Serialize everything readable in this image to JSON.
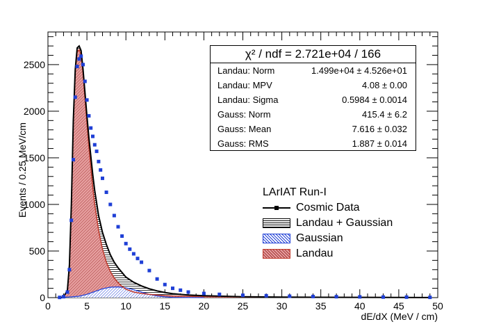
{
  "chart_data": {
    "type": "line",
    "xlabel": "dE/dX (MeV / cm)",
    "ylabel": "Events / 0.25 MeV/cm",
    "xlim": [
      0,
      50
    ],
    "ylim": [
      0,
      2850
    ],
    "x_ticks": [
      "0",
      "5",
      "10",
      "15",
      "20",
      "25",
      "30",
      "35",
      "40",
      "45",
      "50"
    ],
    "y_ticks": [
      "0",
      "500",
      "1000",
      "1500",
      "2000",
      "2500"
    ],
    "legend": {
      "header": "LArIAT Run-I",
      "entries": [
        "Cosmic Data",
        "Landau + Gaussian",
        "Gaussian",
        "Landau"
      ],
      "position": "right"
    },
    "stats": {
      "title": "χ² / ndf = 2.721e+04 / 166",
      "rows": [
        {
          "label": "Landau: Norm",
          "value": "1.499e+04 ± 4.526e+01"
        },
        {
          "label": "Landau: MPV",
          "value": "4.08 ± 0.00"
        },
        {
          "label": "Landau: Sigma",
          "value": "0.5984 ± 0.0014"
        },
        {
          "label": "Gauss: Norm",
          "value": "415.4 ± 6.2"
        },
        {
          "label": "Gauss: Mean",
          "value": "7.616 ± 0.032"
        },
        {
          "label": "Gauss: RMS",
          "value": "1.887 ± 0.014"
        }
      ]
    },
    "series": [
      {
        "name": "Cosmic Data",
        "x": [
          1.5,
          2.0,
          2.5,
          2.75,
          3.0,
          3.25,
          3.5,
          3.75,
          4.0,
          4.25,
          4.5,
          4.75,
          5.0,
          5.25,
          5.5,
          5.75,
          6.0,
          6.25,
          6.5,
          6.75,
          7.0,
          7.5,
          8.0,
          8.5,
          9.0,
          9.5,
          10.0,
          10.5,
          11.0,
          11.5,
          12.0,
          13.0,
          14.0,
          15.0,
          16.0,
          17.0,
          18.0,
          20.0,
          22.0,
          25.0,
          28.0,
          31.0,
          34.0,
          37.0,
          40.0,
          43.0,
          46.0,
          49.0
        ],
        "y": [
          2,
          10,
          60,
          300,
          830,
          1480,
          2150,
          2480,
          2560,
          2590,
          2500,
          2320,
          2120,
          1950,
          1820,
          1730,
          1640,
          1570,
          1460,
          1370,
          1280,
          1130,
          1000,
          880,
          760,
          660,
          580,
          520,
          470,
          420,
          380,
          290,
          200,
          140,
          100,
          80,
          60,
          45,
          35,
          25,
          20,
          15,
          12,
          10,
          8,
          6,
          5,
          3
        ]
      },
      {
        "name": "Landau + Gaussian",
        "x": [
          1.5,
          2.0,
          2.5,
          2.75,
          3.0,
          3.25,
          3.5,
          3.75,
          4.0,
          4.25,
          4.5,
          4.75,
          5.0,
          5.25,
          5.5,
          5.75,
          6.0,
          6.5,
          7.0,
          7.5,
          8.0,
          8.5,
          9.0,
          9.5,
          10.0,
          11.0,
          12.0,
          13.0,
          14.0,
          15.0,
          16.0,
          18.0,
          20.0,
          25.0,
          30.0,
          35.0,
          40.0,
          45.0,
          49.0
        ],
        "y": [
          0,
          5,
          80,
          350,
          1000,
          1900,
          2450,
          2680,
          2700,
          2650,
          2450,
          2200,
          1950,
          1720,
          1520,
          1320,
          1150,
          880,
          700,
          570,
          460,
          380,
          320,
          270,
          220,
          165,
          125,
          95,
          72,
          55,
          42,
          28,
          20,
          10,
          6,
          4,
          3,
          2,
          1
        ]
      },
      {
        "name": "Gaussian",
        "x": [
          1.5,
          2.0,
          3.0,
          4.0,
          5.0,
          6.0,
          7.0,
          8.0,
          9.0,
          10.0,
          11.0,
          12.0,
          13.0,
          14.0,
          15.0,
          16.0,
          18.0,
          20.0
        ],
        "y": [
          0,
          4,
          8,
          15,
          35,
          65,
          95,
          112,
          115,
          106,
          85,
          60,
          35,
          18,
          8,
          3,
          1,
          0
        ]
      },
      {
        "name": "Landau",
        "x": [
          1.5,
          2.0,
          2.5,
          2.75,
          3.0,
          3.25,
          3.5,
          3.75,
          4.0,
          4.25,
          4.5,
          4.75,
          5.0,
          5.25,
          5.5,
          5.75,
          6.0,
          6.5,
          7.0,
          7.5,
          8.0,
          8.5,
          9.0,
          9.5,
          10.0,
          11.0,
          12.0,
          13.0,
          14.0,
          15.0,
          16.0,
          18.0,
          20.0,
          25.0,
          30.0,
          35.0,
          40.0,
          45.0,
          49.0
        ],
        "y": [
          0,
          5,
          75,
          340,
          990,
          1880,
          2420,
          2640,
          2660,
          2600,
          2400,
          2130,
          1870,
          1620,
          1400,
          1180,
          1000,
          720,
          520,
          380,
          280,
          210,
          160,
          120,
          90,
          60,
          45,
          35,
          28,
          22,
          18,
          14,
          11,
          7,
          5,
          4,
          3,
          2,
          1
        ]
      }
    ]
  },
  "colors": {
    "data": "#1f3fd6",
    "landau_gauss": "#000000",
    "gaussian": "#1f3fd6",
    "landau_line": "#c0392b",
    "landau_fill": "#e7a0a0",
    "landau_hatch": "#a23636"
  }
}
